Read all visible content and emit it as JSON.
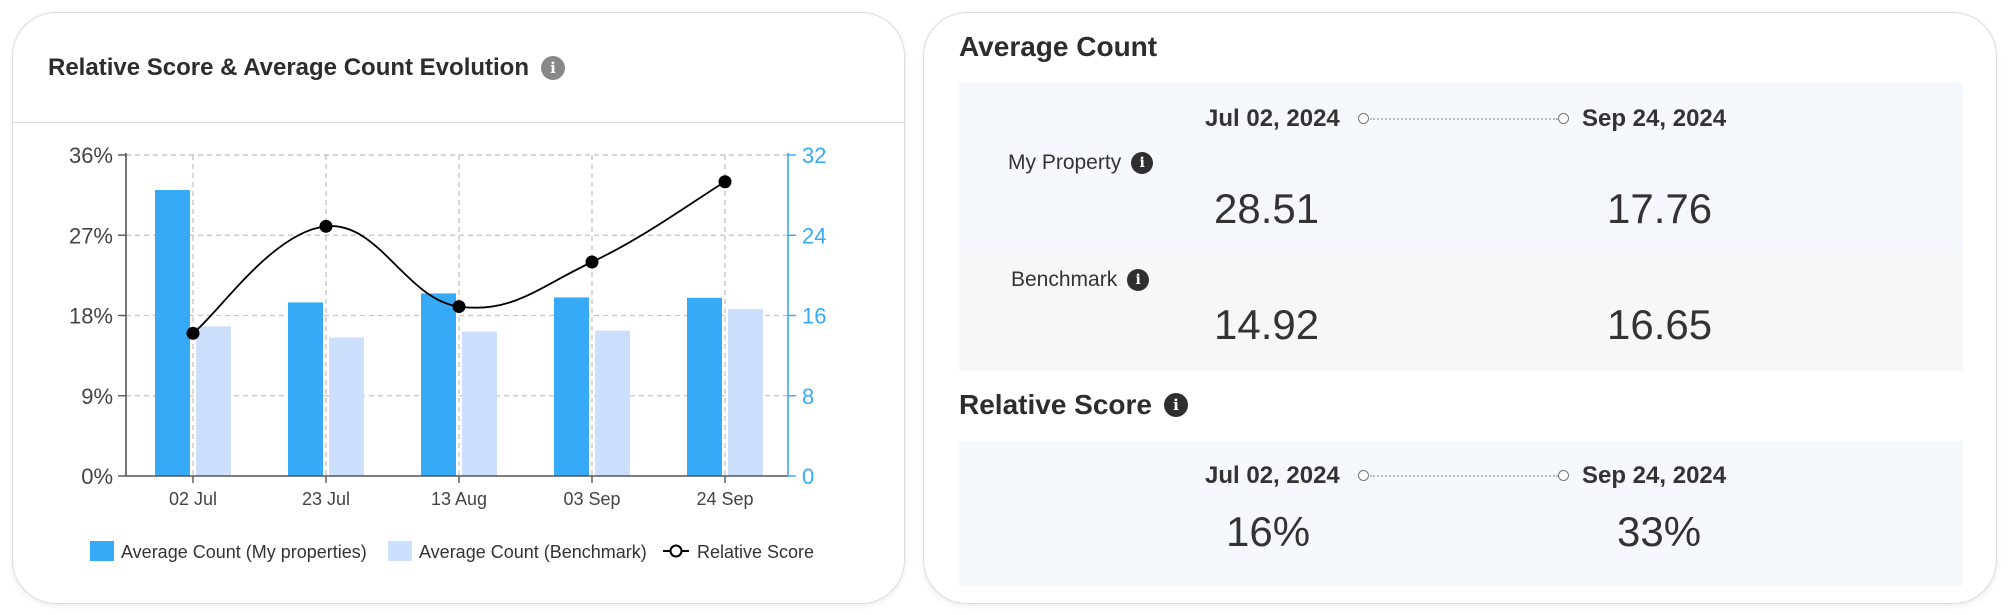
{
  "left_card": {
    "title": "Relative Score & Average Count Evolution",
    "info_icon": "info-icon"
  },
  "chart_data": {
    "type": "bar",
    "title": "Relative Score & Average Count Evolution",
    "categories": [
      "02 Jul",
      "23 Jul",
      "13 Aug",
      "03 Sep",
      "24 Sep"
    ],
    "series": [
      {
        "name": "Average Count (My properties)",
        "type": "bar",
        "axis": "right",
        "color": "#36a9f7",
        "values": [
          28.51,
          17.3,
          18.2,
          17.8,
          17.76
        ]
      },
      {
        "name": "Average Count (Benchmark)",
        "type": "bar",
        "axis": "right",
        "color": "#cce0fd",
        "values": [
          14.92,
          13.8,
          14.4,
          14.5,
          16.65
        ]
      },
      {
        "name": "Relative Score",
        "type": "line",
        "axis": "left",
        "color": "#000000",
        "values": [
          16,
          28,
          19,
          24,
          33
        ]
      }
    ],
    "y_left": {
      "ticks": [
        "36%",
        "27%",
        "18%",
        "9%",
        "0%"
      ],
      "range": [
        0,
        36
      ]
    },
    "y_right": {
      "ticks": [
        "32",
        "24",
        "16",
        "8",
        "0"
      ],
      "range": [
        0,
        32
      ],
      "color": "#36a9f7"
    },
    "grid": true,
    "legend": "bottom"
  },
  "right_card": {
    "average_count": {
      "title": "Average Count",
      "start_date": "Jul 02, 2024",
      "end_date": "Sep 24, 2024",
      "rows": [
        {
          "label": "My Property",
          "start": "28.51",
          "end": "17.76"
        },
        {
          "label": "Benchmark",
          "start": "14.92",
          "end": "16.65"
        }
      ]
    },
    "relative_score": {
      "title": "Relative Score",
      "start_date": "Jul 02, 2024",
      "end_date": "Sep 24, 2024",
      "start": "16%",
      "end": "33%"
    }
  }
}
